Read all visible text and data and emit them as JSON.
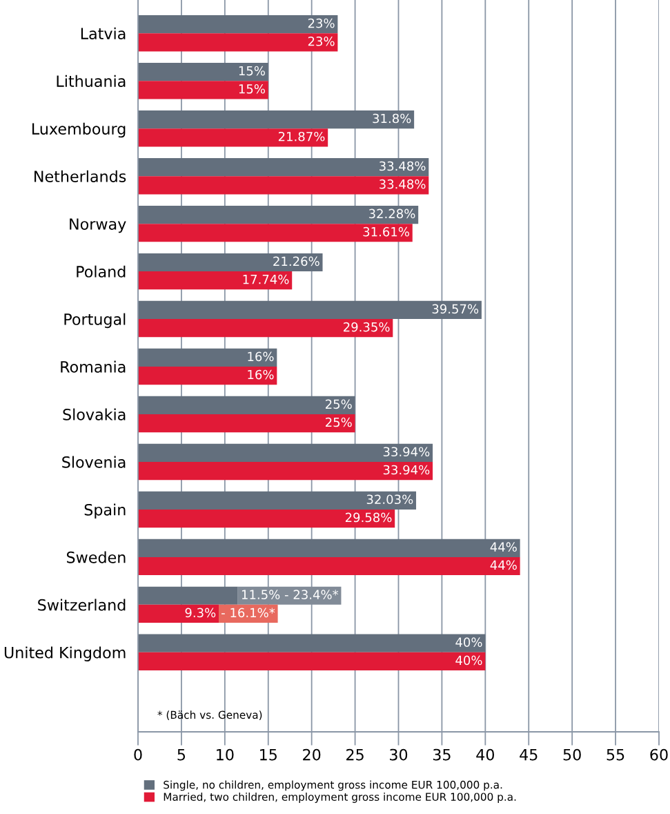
{
  "chart_data": {
    "type": "bar",
    "orientation": "horizontal",
    "categories": [
      "Latvia",
      "Lithuania",
      "Luxembourg",
      "Netherlands",
      "Norway",
      "Poland",
      "Portugal",
      "Romania",
      "Slovakia",
      "Slovenia",
      "Spain",
      "Sweden",
      "Switzerland",
      "United Kingdom"
    ],
    "series": [
      {
        "name": "Single, no children, employment gross income EUR 100,000 p.a.",
        "color": "#636f7d",
        "values": [
          23,
          15,
          31.8,
          33.48,
          32.28,
          21.26,
          39.57,
          16,
          25,
          33.94,
          32.03,
          44,
          11.5,
          40
        ],
        "value_labels": [
          "23%",
          "15%",
          "31.8%",
          "33.48%",
          "32.28%",
          "21.26%",
          "39.57%",
          "16%",
          "25%",
          "33.94%",
          "32.03%",
          "44%",
          null,
          "40%"
        ]
      },
      {
        "color": "#818b97",
        "base": [
          null,
          null,
          null,
          null,
          null,
          null,
          null,
          null,
          null,
          null,
          null,
          null,
          11.5,
          null
        ],
        "values": [
          null,
          null,
          null,
          null,
          null,
          null,
          null,
          null,
          null,
          null,
          null,
          null,
          11.9,
          null
        ]
      },
      {
        "name": "Married, two children, employment gross income EUR 100,000 p.a.",
        "color": "#e11a37",
        "values": [
          23,
          15,
          21.87,
          33.48,
          31.61,
          17.74,
          29.35,
          16,
          25,
          33.94,
          29.58,
          44,
          9.3,
          40
        ],
        "value_labels": [
          "23%",
          "15%",
          "21.87%",
          "33.48%",
          "31.61%",
          "17.74%",
          "29.35%",
          "16%",
          "25%",
          "33.94%",
          "29.58%",
          "44%",
          "9.3%",
          "40%"
        ]
      },
      {
        "color": "#e8695e",
        "base": [
          null,
          null,
          null,
          null,
          null,
          null,
          null,
          null,
          null,
          null,
          null,
          null,
          9.3,
          null
        ],
        "values": [
          null,
          null,
          null,
          null,
          null,
          null,
          null,
          null,
          null,
          null,
          null,
          null,
          6.8,
          null
        ]
      }
    ],
    "xlim": [
      0,
      60
    ],
    "xticks": [
      0,
      5,
      10,
      15,
      20,
      25,
      30,
      35,
      40,
      45,
      50,
      55,
      60
    ],
    "grid": "x",
    "legend": "bottom left",
    "annotations": [
      {
        "text": "11.5% - 23.4%*",
        "x": 23.4,
        "y": "Switzerland"
      },
      {
        "text": "- 16.1%*",
        "x": 16.1,
        "y": "Switzerland"
      },
      "* (Bäch vs. Geneva)"
    ]
  }
}
